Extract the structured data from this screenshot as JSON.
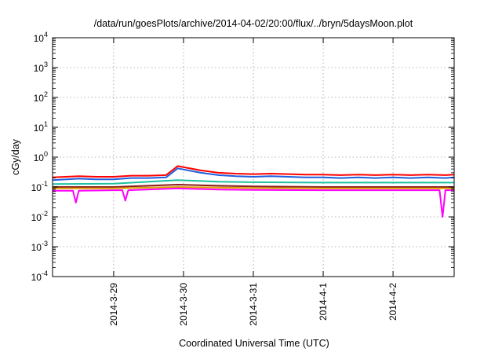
{
  "chart_data": {
    "type": "line",
    "title": "/data/run/goesPlots/archive/2014-04-02/20:00/flux/../bryn/5daysMoon.plot",
    "xlabel": "Coordinated Universal Time (UTC)",
    "ylabel": "cGy/day",
    "y_scale": "log",
    "ylim": [
      0.0001,
      10000
    ],
    "y_ticks": [
      {
        "base": "10",
        "exp": "-4"
      },
      {
        "base": "10",
        "exp": "-3"
      },
      {
        "base": "10",
        "exp": "-2"
      },
      {
        "base": "10",
        "exp": "-1"
      },
      {
        "base": "10",
        "exp": "0"
      },
      {
        "base": "10",
        "exp": "1"
      },
      {
        "base": "10",
        "exp": "2"
      },
      {
        "base": "10",
        "exp": "3"
      },
      {
        "base": "10",
        "exp": "4"
      }
    ],
    "xlim": [
      "2014-03-28T03:00",
      "2014-04-02T21:00"
    ],
    "x_ticks": [
      "2014-3-29",
      "2014-3-30",
      "2014-3-31",
      "2014-4-1",
      "2014-4-2"
    ],
    "grid": true,
    "series": [
      {
        "color": "#ff0000",
        "x": [
          "2014-03-28T03:00",
          "2014-03-28T12:00",
          "2014-03-28T18:00",
          "2014-03-29T00:00",
          "2014-03-29T06:00",
          "2014-03-29T12:00",
          "2014-03-29T18:00",
          "2014-03-29T22:00",
          "2014-03-30T06:00",
          "2014-03-30T12:00",
          "2014-03-30T18:00",
          "2014-03-31T00:00",
          "2014-03-31T06:00",
          "2014-03-31T12:00",
          "2014-03-31T18:00",
          "2014-04-01T00:00",
          "2014-04-01T06:00",
          "2014-04-01T12:00",
          "2014-04-01T18:00",
          "2014-04-02T00:00",
          "2014-04-02T06:00",
          "2014-04-02T12:00",
          "2014-04-02T18:00",
          "2014-04-02T21:00"
        ],
        "y": [
          0.21,
          0.23,
          0.22,
          0.22,
          0.24,
          0.24,
          0.25,
          0.5,
          0.36,
          0.3,
          0.28,
          0.27,
          0.28,
          0.27,
          0.26,
          0.26,
          0.25,
          0.26,
          0.25,
          0.26,
          0.25,
          0.26,
          0.25,
          0.26
        ]
      },
      {
        "color": "#1f5fe0",
        "x": [
          "2014-03-28T03:00",
          "2014-03-28T12:00",
          "2014-03-28T18:00",
          "2014-03-29T00:00",
          "2014-03-29T06:00",
          "2014-03-29T12:00",
          "2014-03-29T18:00",
          "2014-03-29T22:00",
          "2014-03-30T06:00",
          "2014-03-30T12:00",
          "2014-03-30T18:00",
          "2014-03-31T00:00",
          "2014-03-31T06:00",
          "2014-03-31T12:00",
          "2014-03-31T18:00",
          "2014-04-01T00:00",
          "2014-04-01T06:00",
          "2014-04-01T12:00",
          "2014-04-01T18:00",
          "2014-04-02T00:00",
          "2014-04-02T06:00",
          "2014-04-02T12:00",
          "2014-04-02T18:00",
          "2014-04-02T21:00"
        ],
        "y": [
          0.17,
          0.19,
          0.18,
          0.18,
          0.2,
          0.2,
          0.21,
          0.42,
          0.3,
          0.25,
          0.23,
          0.22,
          0.23,
          0.22,
          0.21,
          0.21,
          0.2,
          0.21,
          0.2,
          0.21,
          0.2,
          0.21,
          0.2,
          0.21
        ]
      },
      {
        "color": "#20c0a0",
        "x": [
          "2014-03-28T03:00",
          "2014-03-29T00:00",
          "2014-03-29T22:00",
          "2014-03-30T12:00",
          "2014-03-31T00:00",
          "2014-04-01T00:00",
          "2014-04-02T00:00",
          "2014-04-02T21:00"
        ],
        "y": [
          0.125,
          0.13,
          0.17,
          0.15,
          0.145,
          0.14,
          0.14,
          0.14
        ]
      },
      {
        "color": "#8b1a1a",
        "x": [
          "2014-03-28T03:00",
          "2014-03-29T00:00",
          "2014-03-29T22:00",
          "2014-03-30T12:00",
          "2014-03-31T00:00",
          "2014-04-01T00:00",
          "2014-04-02T00:00",
          "2014-04-02T21:00"
        ],
        "y": [
          0.1,
          0.1,
          0.12,
          0.11,
          0.105,
          0.1,
          0.1,
          0.1
        ]
      },
      {
        "color": "#e0a000",
        "x": [
          "2014-03-28T03:00",
          "2014-03-29T00:00",
          "2014-03-29T22:00",
          "2014-03-30T12:00",
          "2014-03-31T00:00",
          "2014-04-01T00:00",
          "2014-04-02T00:00",
          "2014-04-02T21:00"
        ],
        "y": [
          0.09,
          0.09,
          0.1,
          0.095,
          0.092,
          0.09,
          0.09,
          0.09
        ]
      },
      {
        "color": "#ff00ff",
        "x": [
          "2014-03-28T03:00",
          "2014-03-28T10:00",
          "2014-03-28T11:00",
          "2014-03-28T12:00",
          "2014-03-29T00:00",
          "2014-03-29T03:00",
          "2014-03-29T04:00",
          "2014-03-29T05:00",
          "2014-03-29T22:00",
          "2014-03-30T12:00",
          "2014-03-31T00:00",
          "2014-04-01T00:00",
          "2014-04-02T00:00",
          "2014-04-02T16:00",
          "2014-04-02T17:00",
          "2014-04-02T18:00",
          "2014-04-02T21:00"
        ],
        "y": [
          0.075,
          0.075,
          0.03,
          0.075,
          0.078,
          0.078,
          0.035,
          0.078,
          0.09,
          0.082,
          0.08,
          0.078,
          0.078,
          0.078,
          0.01,
          0.078,
          0.078
        ]
      }
    ]
  }
}
